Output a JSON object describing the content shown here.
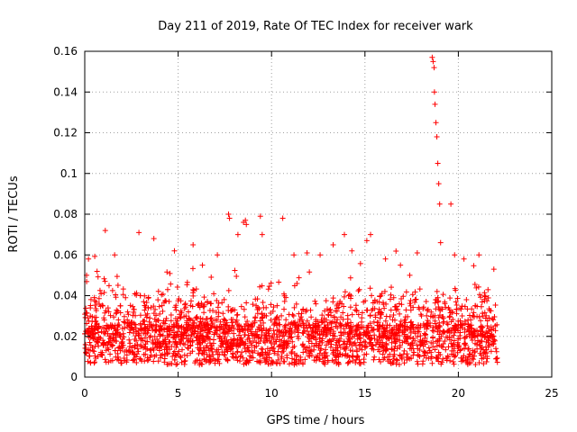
{
  "chart_data": {
    "type": "scatter",
    "title": "Day 211 of 2019, Rate Of TEC Index for receiver wark",
    "xlabel": "GPS time / hours",
    "ylabel": "ROTI / TECUs",
    "xlim": [
      0,
      25
    ],
    "ylim": [
      0,
      0.16
    ],
    "xticks": [
      "0",
      "5",
      "10",
      "15",
      "20",
      "25"
    ],
    "yticks": [
      "0",
      "0.02",
      "0.04",
      "0.06",
      "0.08",
      "0.1",
      "0.12",
      "0.14",
      "0.16"
    ],
    "grid": true,
    "marker": "+",
    "color": "#ff0000",
    "x_range_of_data": [
      0,
      22.1
    ],
    "series": [
      {
        "x": [
          0.05,
          0.1,
          0.2,
          0.3,
          1.1,
          1.6,
          2.9,
          3.7,
          4.8,
          5.8,
          6.3,
          7.1,
          7.7,
          7.75,
          8.2,
          8.5,
          8.6,
          8.65,
          9.4,
          9.5,
          10.6,
          11.2,
          11.9,
          12.6,
          13.3,
          13.9,
          14.3,
          15.1,
          15.3,
          16.1,
          16.9,
          17.4,
          17.8,
          18.6,
          18.65,
          18.7,
          18.72,
          18.75,
          18.8,
          18.85,
          18.9,
          18.95,
          19.0,
          19.05,
          19.6,
          19.8,
          20.3,
          21.1,
          21.9
        ],
        "y": [
          0.012,
          0.05,
          0.058,
          0.03,
          0.072,
          0.06,
          0.071,
          0.068,
          0.062,
          0.065,
          0.055,
          0.06,
          0.08,
          0.078,
          0.07,
          0.076,
          0.077,
          0.075,
          0.079,
          0.07,
          0.078,
          0.06,
          0.061,
          0.06,
          0.065,
          0.07,
          0.062,
          0.067,
          0.07,
          0.058,
          0.055,
          0.05,
          0.061,
          0.157,
          0.155,
          0.152,
          0.14,
          0.134,
          0.125,
          0.118,
          0.105,
          0.095,
          0.085,
          0.066,
          0.085,
          0.06,
          0.058,
          0.06,
          0.053
        ]
      }
    ]
  }
}
